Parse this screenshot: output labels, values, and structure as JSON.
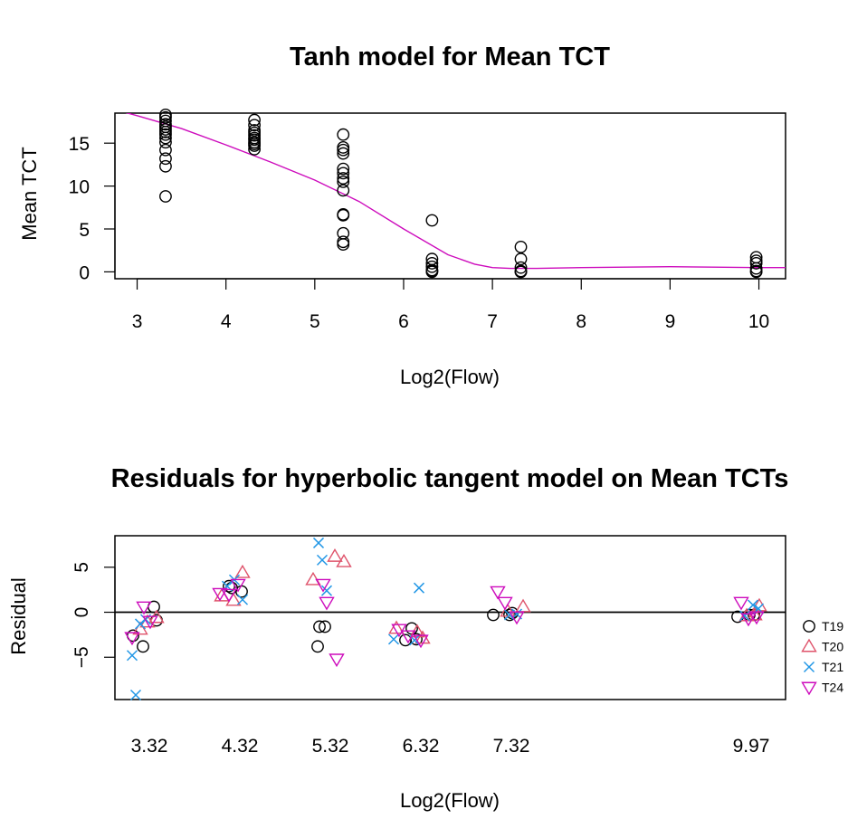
{
  "chart_data": [
    {
      "type": "scatter",
      "title": "Tanh model for Mean TCT",
      "xlabel": "Log2(Flow)",
      "ylabel": "Mean TCT",
      "xlim": [
        2.75,
        10.3
      ],
      "ylim": [
        -0.8,
        18.5
      ],
      "xticks": [
        3,
        4,
        5,
        6,
        7,
        8,
        9,
        10
      ],
      "xtick_labels": [
        "3",
        "4",
        "5",
        "6",
        "7",
        "8",
        "9",
        "10"
      ],
      "yticks": [
        0,
        5,
        10,
        15
      ],
      "ytick_labels": [
        "0",
        "5",
        "10",
        "15"
      ],
      "grid": false,
      "points": {
        "x": [
          3.32,
          3.32,
          3.32,
          3.32,
          3.32,
          3.32,
          3.32,
          3.32,
          3.32,
          3.32,
          3.32,
          3.32,
          3.32,
          3.32,
          4.32,
          4.32,
          4.32,
          4.32,
          4.32,
          4.32,
          4.32,
          4.32,
          4.32,
          4.32,
          4.32,
          5.32,
          5.32,
          5.32,
          5.32,
          5.32,
          5.32,
          5.32,
          5.32,
          5.32,
          5.32,
          5.32,
          5.32,
          5.32,
          5.32,
          6.32,
          6.32,
          6.32,
          6.32,
          6.32,
          6.32,
          6.32,
          7.32,
          7.32,
          7.32,
          7.32,
          7.32,
          7.32,
          9.97,
          9.97,
          9.97,
          9.97,
          9.97,
          9.97
        ],
        "y": [
          18.3,
          18.0,
          17.6,
          17.2,
          16.9,
          16.6,
          16.3,
          16.0,
          15.6,
          15.1,
          14.2,
          13.2,
          12.3,
          8.8,
          17.7,
          17.1,
          16.5,
          16.2,
          15.9,
          15.6,
          15.4,
          15.1,
          14.9,
          14.7,
          14.3,
          16.0,
          14.5,
          14.2,
          13.8,
          12.0,
          11.5,
          10.9,
          10.5,
          9.5,
          6.7,
          6.6,
          4.5,
          3.2,
          3.5,
          6.0,
          1.5,
          1.0,
          0.6,
          0.2,
          0.1,
          0.0,
          2.9,
          1.5,
          0.5,
          0.1,
          0.0,
          0.0,
          1.7,
          1.3,
          1.0,
          0.4,
          0.1,
          0.0
        ]
      },
      "fit_line": {
        "name": "",
        "color": "#CD0BBC",
        "x": [
          2.75,
          3.0,
          3.5,
          4.0,
          4.5,
          5.0,
          5.5,
          6.0,
          6.5,
          6.8,
          7.0,
          7.2,
          7.5,
          8.0,
          9.0,
          10.0,
          10.3
        ],
        "y": [
          18.9,
          18.2,
          16.7,
          14.8,
          12.8,
          10.7,
          8.2,
          5.0,
          2.0,
          0.9,
          0.5,
          0.4,
          0.4,
          0.5,
          0.6,
          0.5,
          0.5
        ]
      },
      "marker_color": "#000000"
    },
    {
      "type": "scatter",
      "title": "Residuals for hyperbolic tangent model on Mean TCTs",
      "xlabel": "Log2(Flow)",
      "ylabel": "Residual",
      "xlim": [
        2.94,
        10.35
      ],
      "ylim": [
        -9.7,
        8.5
      ],
      "xticks": [
        3.32,
        4.32,
        5.32,
        6.32,
        7.32,
        9.97
      ],
      "xtick_labels": [
        "3.32",
        "4.32",
        "5.32",
        "6.32",
        "7.32",
        "9.97"
      ],
      "yticks": [
        -5,
        0,
        5
      ],
      "ytick_labels": [
        "−5",
        "0",
        "5"
      ],
      "grid": false,
      "reference_line_y": 0,
      "legend_position": "right",
      "series": [
        {
          "name": "T19",
          "symbol": "circle",
          "color": "#000000",
          "x": [
            3.14,
            3.25,
            3.37,
            3.4,
            4.2,
            4.23,
            4.34,
            5.18,
            5.2,
            5.26,
            6.15,
            6.22,
            6.27,
            7.12,
            7.3,
            7.33,
            9.82,
            9.95,
            10.0
          ],
          "y": [
            -2.6,
            -3.8,
            0.6,
            -0.9,
            2.9,
            2.7,
            2.3,
            -3.8,
            -1.6,
            -1.6,
            -3.1,
            -1.8,
            -3.0,
            -0.3,
            -0.3,
            -0.1,
            -0.5,
            -0.3,
            -0.3
          ]
        },
        {
          "name": "T20",
          "symbol": "triangle-up",
          "color": "#DF536B",
          "x": [
            3.22,
            3.3,
            3.4,
            4.12,
            4.25,
            4.35,
            5.13,
            5.37,
            5.47,
            6.05,
            6.28,
            6.34,
            7.28,
            7.45,
            9.92,
            10.01,
            10.06
          ],
          "y": [
            -1.9,
            -1.1,
            -0.6,
            1.8,
            1.3,
            4.4,
            3.6,
            6.2,
            5.6,
            -1.8,
            -2.2,
            -2.9,
            0.1,
            0.6,
            -0.4,
            -0.3,
            0.7
          ]
        },
        {
          "name": "T21",
          "symbol": "x",
          "color": "#2297E6",
          "x": [
            3.13,
            3.17,
            3.22,
            3.28,
            4.18,
            4.26,
            4.35,
            5.19,
            5.23,
            5.28,
            6.02,
            6.25,
            6.3,
            7.3,
            7.38,
            9.9,
            9.99,
            10.05
          ],
          "y": [
            -4.8,
            -9.2,
            -1.3,
            -0.8,
            2.9,
            3.6,
            1.4,
            7.7,
            5.8,
            2.4,
            -3.0,
            -3.1,
            2.7,
            -0.3,
            -0.2,
            -0.4,
            0.8,
            0.4
          ]
        },
        {
          "name": "T24",
          "symbol": "triangle-down",
          "color": "#CD0BBC",
          "x": [
            3.13,
            3.26,
            3.33,
            4.1,
            4.2,
            4.3,
            5.24,
            5.28,
            5.39,
            6.08,
            6.18,
            6.32,
            7.17,
            7.25,
            7.38,
            9.86,
            9.94,
            10.03
          ],
          "y": [
            -2.8,
            0.6,
            -1.0,
            2.1,
            2.0,
            3.1,
            3.1,
            1.1,
            -5.2,
            -1.9,
            -2.6,
            -3.1,
            2.3,
            1.1,
            -0.5,
            1.1,
            -0.7,
            -0.5
          ]
        }
      ]
    }
  ]
}
